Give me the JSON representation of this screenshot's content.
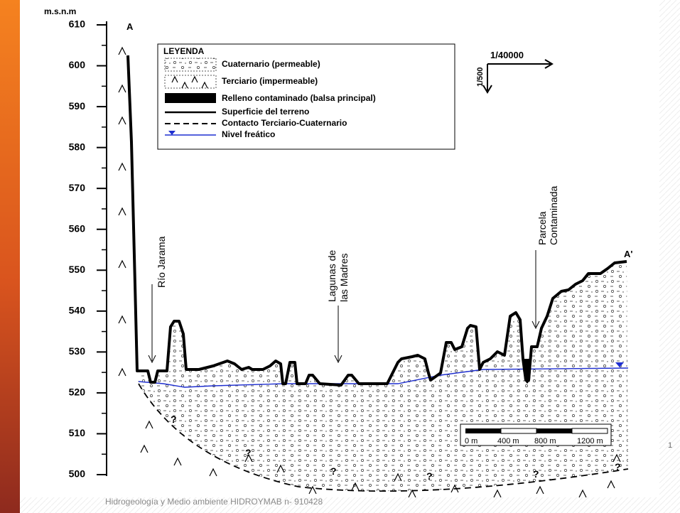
{
  "header": {
    "unit": "m.s.n.m"
  },
  "axis": {
    "ticks": [
      610,
      600,
      590,
      580,
      570,
      560,
      550,
      540,
      530,
      520,
      510,
      500
    ]
  },
  "legend": {
    "title": "LEYENDA",
    "items": [
      "Cuaternario (permeable)",
      "Terciario (impermeable)",
      "Relleno contaminado (balsa principal)",
      "Superficie del terreno",
      "Contacto Terciario-Cuaternario",
      "Nivel freático"
    ]
  },
  "scale": {
    "horizontal": "1/40000",
    "vertical": "1/500"
  },
  "labels": {
    "point_a": "A",
    "point_a_prime": "A'",
    "rio": "Río Jarama",
    "lagunas": [
      "Lagunas de",
      "las Madres"
    ],
    "parcela": [
      "Parcela",
      "Contaminada"
    ],
    "uncertain": "?"
  },
  "scale_bar": {
    "labels": [
      "0 m",
      "400 m",
      "800 m",
      "1200 m"
    ]
  },
  "footer": "Hidrogeología y Medio ambiente  HIDROYMAB  n- 910428",
  "page_number": "1"
}
